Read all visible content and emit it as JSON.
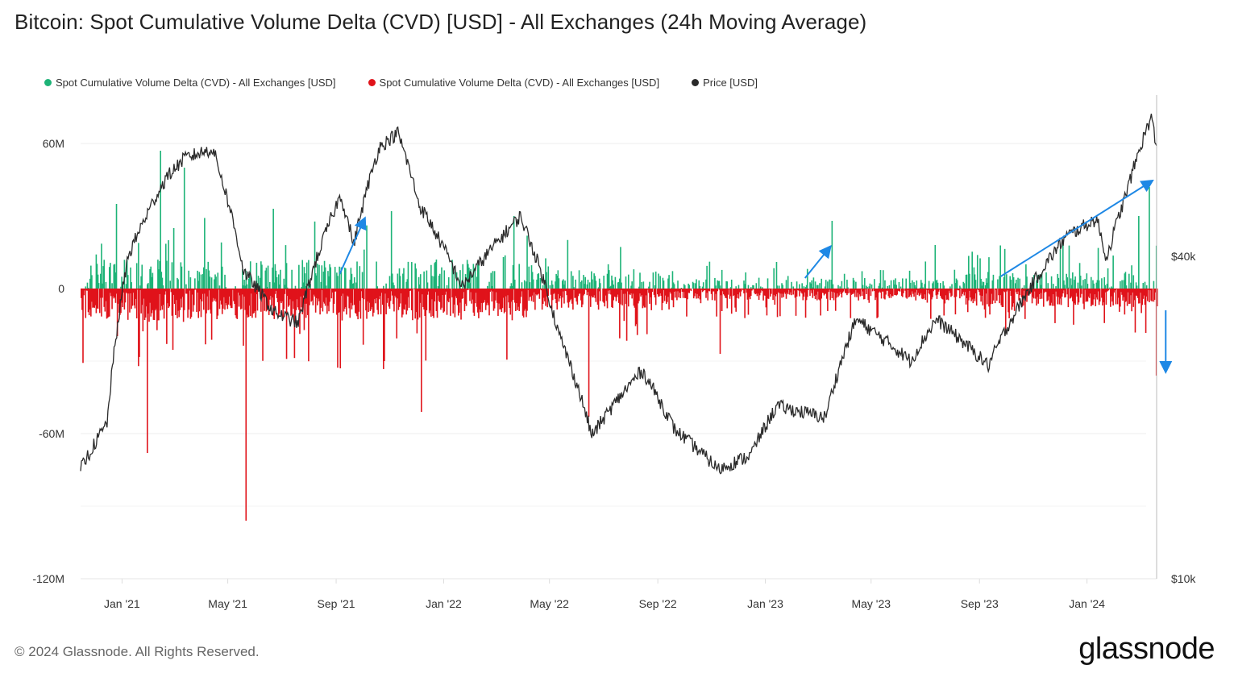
{
  "title": "Bitcoin: Spot Cumulative Volume Delta (CVD) [USD] - All Exchanges (24h Moving Average)",
  "legend": [
    {
      "label": "Spot Cumulative Volume Delta (CVD) - All Exchanges [USD]",
      "color": "#1db377"
    },
    {
      "label": "Spot Cumulative Volume Delta (CVD) - All Exchanges [USD]",
      "color": "#e0131a"
    },
    {
      "label": "Price [USD]",
      "color": "#2a2a2a"
    }
  ],
  "footer": "© 2024 Glassnode. All Rights Reserved.",
  "brand": "glassnode",
  "chart_data": {
    "type": "bar",
    "title": "Bitcoin: Spot Cumulative Volume Delta (CVD) [USD] - All Exchanges (24h Moving Average)",
    "x_tick_labels": [
      "Jan '21",
      "May '21",
      "Sep '21",
      "Jan '22",
      "May '22",
      "Sep '22",
      "Jan '23",
      "May '23",
      "Sep '23",
      "Jan '24"
    ],
    "y_left_tick_labels": [
      "60M",
      "0",
      "-60M",
      "-120M"
    ],
    "y_left_ticks": [
      60,
      0,
      -60,
      -120
    ],
    "y_left_range_musd": [
      -120,
      80
    ],
    "y_right_tick_labels": [
      "$40k",
      "$10k"
    ],
    "y_right_ticks": [
      40000,
      10000
    ],
    "y_right_scale": "log",
    "y_right_range_usd": [
      10000,
      80000
    ],
    "x_range": [
      "2020-11-15",
      "2024-03-20"
    ],
    "price_series": {
      "name": "Price [USD]",
      "dates": [
        "2020-11-15",
        "2020-12-15",
        "2021-01-08",
        "2021-02-20",
        "2021-03-13",
        "2021-04-14",
        "2021-05-19",
        "2021-06-22",
        "2021-07-20",
        "2021-09-06",
        "2021-09-21",
        "2021-10-20",
        "2021-11-10",
        "2021-12-04",
        "2022-01-22",
        "2022-03-29",
        "2022-05-12",
        "2022-06-18",
        "2022-08-14",
        "2022-09-20",
        "2022-11-09",
        "2022-12-15",
        "2023-01-14",
        "2023-03-10",
        "2023-04-14",
        "2023-06-15",
        "2023-07-14",
        "2023-09-11",
        "2023-10-24",
        "2023-12-08",
        "2024-01-12",
        "2024-01-23",
        "2024-02-14",
        "2024-03-14",
        "2024-03-20"
      ],
      "values": [
        16000,
        19500,
        40000,
        56000,
        61000,
        63500,
        37500,
        31500,
        30000,
        52000,
        42000,
        64000,
        68000,
        50000,
        35000,
        47500,
        28500,
        18500,
        24500,
        19000,
        16000,
        17000,
        21000,
        20000,
        30500,
        25500,
        30500,
        25000,
        34000,
        43500,
        47000,
        39500,
        52000,
        73000,
        63000
      ]
    },
    "cvd_series": {
      "name": "Spot Cumulative Volume Delta (CVD) - All Exchanges [USD]",
      "unit": "M USD",
      "positive_color": "#1db377",
      "negative_color": "#e0131a",
      "notable_bars": [
        {
          "date": "2020-12-25",
          "value": 35
        },
        {
          "date": "2021-01-29",
          "value": -68
        },
        {
          "date": "2021-02-13",
          "value": 57
        },
        {
          "date": "2021-02-28",
          "value": 25
        },
        {
          "date": "2021-03-12",
          "value": 50
        },
        {
          "date": "2021-05-21",
          "value": -96
        },
        {
          "date": "2021-06-21",
          "value": 33
        },
        {
          "date": "2021-09-05",
          "value": -33
        },
        {
          "date": "2021-10-25",
          "value": -30
        },
        {
          "date": "2021-11-02",
          "value": 32
        },
        {
          "date": "2021-12-06",
          "value": -51
        },
        {
          "date": "2022-03-21",
          "value": 30
        },
        {
          "date": "2022-06-14",
          "value": -53
        },
        {
          "date": "2022-11-10",
          "value": -27
        },
        {
          "date": "2023-01-13",
          "value": 11
        },
        {
          "date": "2023-03-17",
          "value": 28
        },
        {
          "date": "2023-07-12",
          "value": 18
        },
        {
          "date": "2023-10-23",
          "value": 10
        },
        {
          "date": "2023-12-04",
          "value": 20
        },
        {
          "date": "2024-02-28",
          "value": 30
        },
        {
          "date": "2024-03-11",
          "value": 42
        },
        {
          "date": "2024-03-19",
          "value": -36
        }
      ]
    },
    "annotations": [
      {
        "type": "arrow",
        "direction": "up",
        "color": "#1e88e5",
        "date_from": "2021-09-05",
        "date_to": "2021-10-03"
      },
      {
        "type": "arrow",
        "direction": "up",
        "color": "#1e88e5",
        "date_from": "2023-02-15",
        "date_to": "2023-03-15"
      },
      {
        "type": "arrow",
        "direction": "up",
        "color": "#1e88e5",
        "date_from": "2023-09-25",
        "date_to": "2024-03-14"
      },
      {
        "type": "arrow",
        "direction": "down",
        "color": "#1e88e5",
        "date_from": "2024-03-23",
        "date_to": "2024-03-23"
      }
    ]
  }
}
